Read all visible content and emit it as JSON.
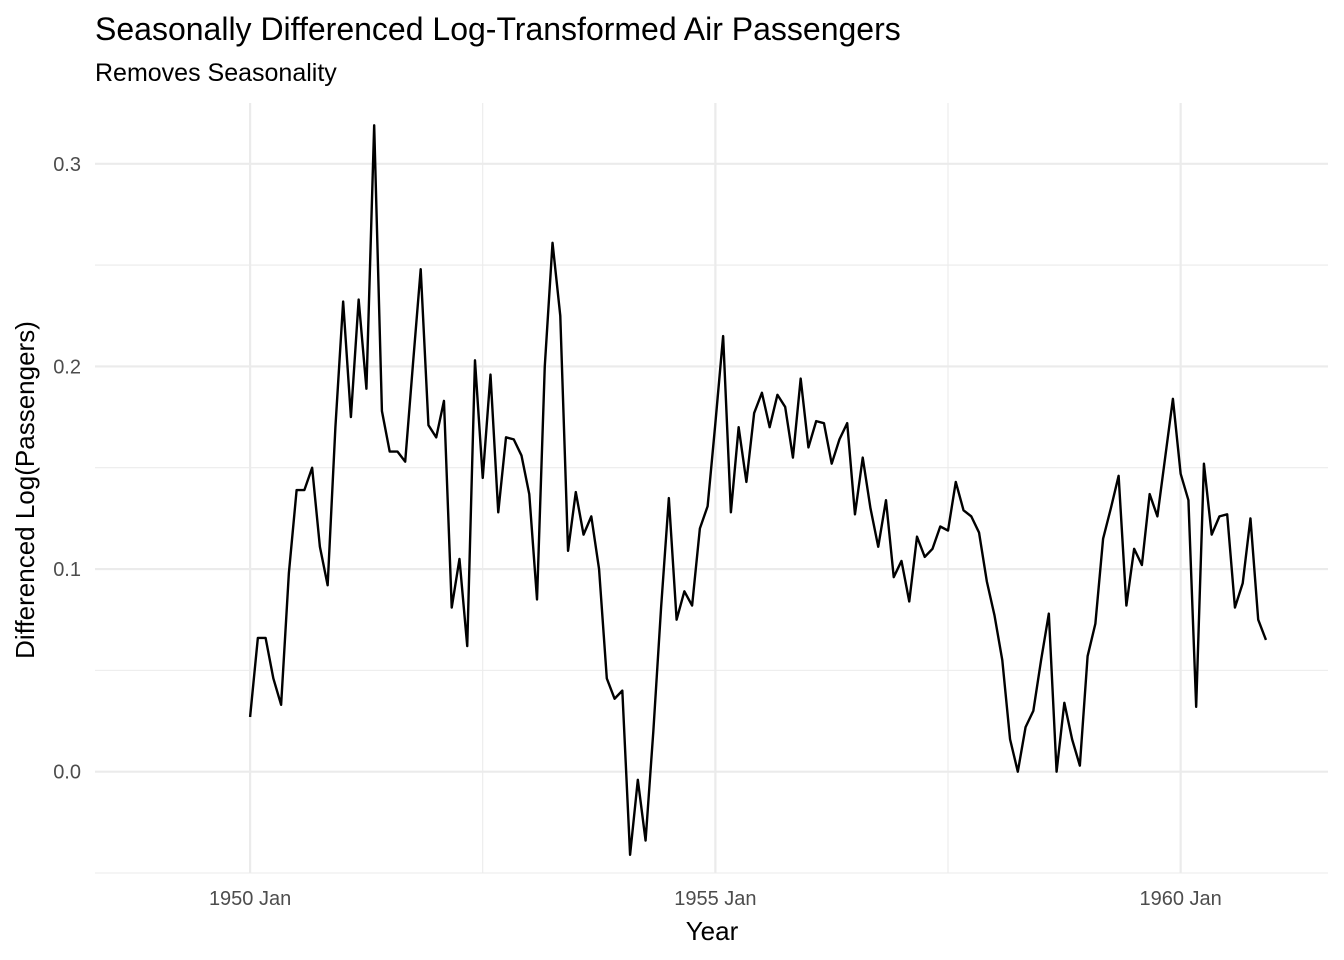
{
  "chart_data": {
    "type": "line",
    "title": "Seasonally Differenced Log-Transformed Air Passengers",
    "subtitle": "Removes Seasonality",
    "xlabel": "Year",
    "ylabel": "Differenced Log(Passengers)",
    "x_ticks": [
      {
        "label": "1950 Jan",
        "date": "1950-01"
      },
      {
        "label": "1955 Jan",
        "date": "1955-01"
      },
      {
        "label": "1960 Jan",
        "date": "1960-01"
      }
    ],
    "y_ticks": [
      0.0,
      0.1,
      0.2,
      0.3
    ],
    "y_tick_labels": [
      "0.0",
      "0.1",
      "0.2",
      "0.3"
    ],
    "xlim": [
      "1948-05",
      "1961-08"
    ],
    "ylim": [
      -0.05,
      0.33
    ],
    "grid": true,
    "line_color": "#000000",
    "grid_color": "#ebebeb",
    "series": [
      {
        "start": "1950-01",
        "values": [
          0.027,
          0.066,
          0.066,
          0.046,
          0.033,
          0.098,
          0.139,
          0.139,
          0.15,
          0.111,
          0.092,
          0.17,
          0.232,
          0.175,
          0.233,
          0.189,
          0.319,
          0.178,
          0.158,
          0.158,
          0.153,
          0.201,
          0.248,
          0.171,
          0.165,
          0.183,
          0.081,
          0.105,
          0.062,
          0.203,
          0.145,
          0.196,
          0.128,
          0.165,
          0.164,
          0.156,
          0.137,
          0.085,
          0.2,
          0.261,
          0.225,
          0.109,
          0.138,
          0.117,
          0.126,
          0.1,
          0.046,
          0.036,
          0.04,
          -0.041,
          -0.004,
          -0.034,
          0.02,
          0.081,
          0.135,
          0.075,
          0.089,
          0.082,
          0.12,
          0.131,
          0.172,
          0.215,
          0.128,
          0.17,
          0.143,
          0.177,
          0.187,
          0.17,
          0.186,
          0.18,
          0.155,
          0.194,
          0.16,
          0.173,
          0.172,
          0.152,
          0.164,
          0.172,
          0.127,
          0.155,
          0.13,
          0.111,
          0.134,
          0.096,
          0.104,
          0.084,
          0.116,
          0.106,
          0.11,
          0.121,
          0.119,
          0.143,
          0.129,
          0.126,
          0.118,
          0.094,
          0.077,
          0.055,
          0.016,
          0.0,
          0.022,
          0.03,
          0.055,
          0.078,
          0.0,
          0.034,
          0.016,
          0.003,
          0.057,
          0.073,
          0.115,
          0.13,
          0.146,
          0.082,
          0.11,
          0.102,
          0.137,
          0.126,
          0.155,
          0.184,
          0.147,
          0.134,
          0.032,
          0.152,
          0.117,
          0.126,
          0.127,
          0.081,
          0.093,
          0.125,
          0.075,
          0.065
        ]
      }
    ]
  }
}
